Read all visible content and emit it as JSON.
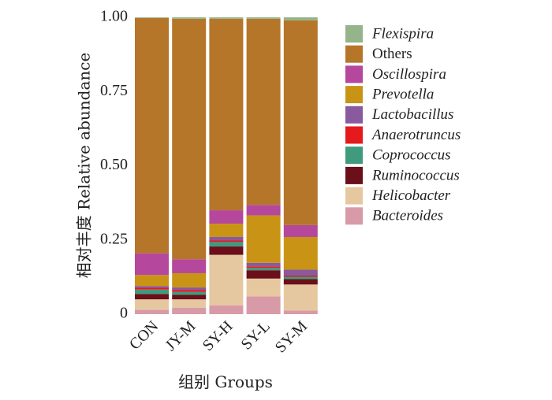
{
  "chart_data": {
    "type": "bar",
    "stacked": true,
    "xlabel": "组别 Groups",
    "ylabel": "相对丰度 Relative abundance",
    "ylim": [
      0,
      1
    ],
    "yticks": [
      "0",
      "0.25",
      "0.50",
      "0.75",
      "1.00"
    ],
    "ytick_values": [
      0,
      0.25,
      0.5,
      0.75,
      1.0
    ],
    "grid": false,
    "legend_position": "right",
    "categories": [
      "CON",
      "JY-M",
      "SY-H",
      "SY-L",
      "SY-M"
    ],
    "series": [
      {
        "name": "Bacteroides",
        "italic": true,
        "color": "#d99aa8",
        "values": [
          0.015,
          0.022,
          0.03,
          0.06,
          0.012
        ]
      },
      {
        "name": "Helicobacter",
        "italic": true,
        "color": "#e6c8a0",
        "values": [
          0.035,
          0.028,
          0.17,
          0.06,
          0.088
        ]
      },
      {
        "name": "Ruminococcus",
        "italic": true,
        "color": "#6b0f1a",
        "values": [
          0.018,
          0.015,
          0.028,
          0.028,
          0.018
        ]
      },
      {
        "name": "Coprococcus",
        "italic": true,
        "color": "#3f9a7e",
        "values": [
          0.015,
          0.01,
          0.015,
          0.008,
          0.008
        ]
      },
      {
        "name": "Anaerotruncus",
        "italic": true,
        "color": "#e41a1c",
        "values": [
          0.006,
          0.006,
          0.005,
          0.005,
          0.004
        ]
      },
      {
        "name": "Lactobacillus",
        "italic": true,
        "color": "#8a5a9e",
        "values": [
          0.006,
          0.009,
          0.012,
          0.012,
          0.02
        ]
      },
      {
        "name": "Prevotella",
        "italic": true,
        "color": "#c99416",
        "values": [
          0.037,
          0.048,
          0.045,
          0.16,
          0.11
        ]
      },
      {
        "name": "Oscillospira",
        "italic": true,
        "color": "#b5479d",
        "values": [
          0.073,
          0.047,
          0.045,
          0.035,
          0.04
        ]
      },
      {
        "name": "Others",
        "italic": false,
        "color": "#b5762a",
        "values": [
          0.793,
          0.81,
          0.645,
          0.627,
          0.69
        ]
      },
      {
        "name": "Flexispira",
        "italic": true,
        "color": "#94b48a",
        "values": [
          0.002,
          0.005,
          0.005,
          0.005,
          0.01
        ]
      }
    ],
    "legend_order": [
      "Flexispira",
      "Others",
      "Oscillospira",
      "Prevotella",
      "Lactobacillus",
      "Anaerotruncus",
      "Coprococcus",
      "Ruminococcus",
      "Helicobacter",
      "Bacteroides"
    ]
  }
}
